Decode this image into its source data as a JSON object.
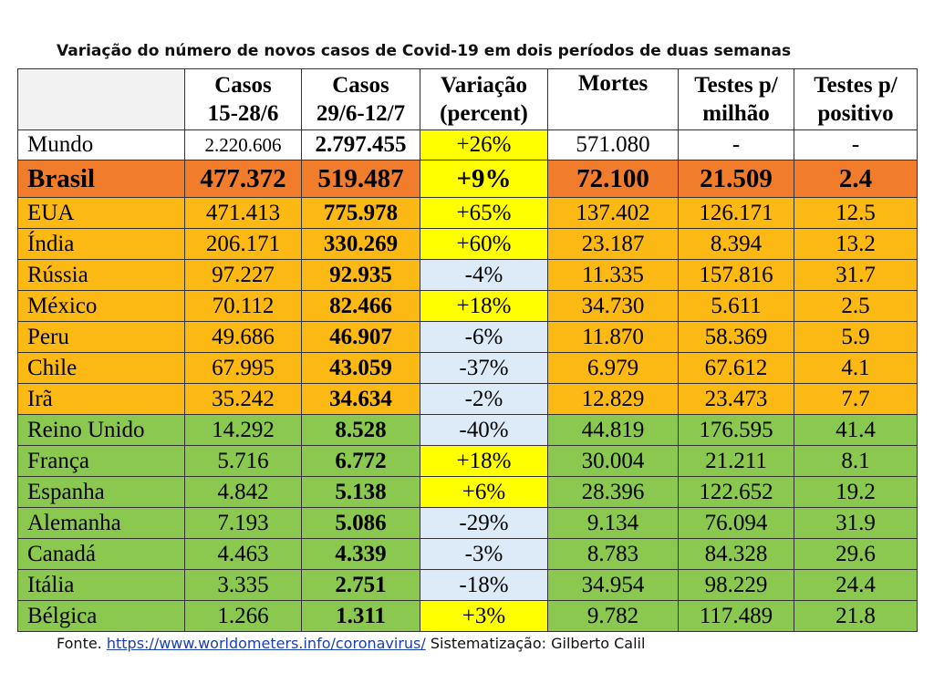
{
  "title": "Variação do número de novos casos de Covid-19 em dois períodos de duas semanas",
  "headers": {
    "country": "",
    "cases1_l1": "Casos",
    "cases1_l2": "15-28/6",
    "cases2_l1": "Casos",
    "cases2_l2": "29/6-12/7",
    "var_l1": "Variação",
    "var_l2": "(percent)",
    "deaths": "Mortes",
    "tests_l1": "Testes p/",
    "tests_l2": "milhão",
    "pos_l1": "Testes p/",
    "pos_l2": "positivo"
  },
  "rows": [
    {
      "country": "Mundo",
      "c1": "2.220.606",
      "c2": "2.797.455",
      "var": "+26%",
      "deaths": "571.080",
      "tests": "-",
      "pos": "-",
      "group": "world",
      "var_color": "yellow"
    },
    {
      "country": "Brasil",
      "c1": "477.372",
      "c2": "519.487",
      "var": "+9%",
      "deaths": "72.100",
      "tests": "21.509",
      "pos": "2.4",
      "group": "brasil",
      "var_color": "yellow"
    },
    {
      "country": "EUA",
      "c1": "471.413",
      "c2": "775.978",
      "var": "+65%",
      "deaths": "137.402",
      "tests": "126.171",
      "pos": "12.5",
      "group": "orange",
      "var_color": "yellow"
    },
    {
      "country": "Índia",
      "c1": "206.171",
      "c2": "330.269",
      "var": "+60%",
      "deaths": "23.187",
      "tests": "8.394",
      "pos": "13.2",
      "group": "orange",
      "var_color": "yellow"
    },
    {
      "country": "Rússia",
      "c1": "97.227",
      "c2": "92.935",
      "var": "-4%",
      "deaths": "11.335",
      "tests": "157.816",
      "pos": "31.7",
      "group": "orange",
      "var_color": "blue"
    },
    {
      "country": "México",
      "c1": "70.112",
      "c2": "82.466",
      "var": "+18%",
      "deaths": "34.730",
      "tests": "5.611",
      "pos": "2.5",
      "group": "orange",
      "var_color": "yellow"
    },
    {
      "country": "Peru",
      "c1": "49.686",
      "c2": "46.907",
      "var": "-6%",
      "deaths": "11.870",
      "tests": "58.369",
      "pos": "5.9",
      "group": "orange",
      "var_color": "blue"
    },
    {
      "country": "Chile",
      "c1": "67.995",
      "c2": "43.059",
      "var": "-37%",
      "deaths": "6.979",
      "tests": "67.612",
      "pos": "4.1",
      "group": "orange",
      "var_color": "blue"
    },
    {
      "country": "Irã",
      "c1": "35.242",
      "c2": "34.634",
      "var": "-2%",
      "deaths": "12.829",
      "tests": "23.473",
      "pos": "7.7",
      "group": "orange",
      "var_color": "blue"
    },
    {
      "country": "Reino Unido",
      "c1": "14.292",
      "c2": "8.528",
      "var": "-40%",
      "deaths": "44.819",
      "tests": "176.595",
      "pos": "41.4",
      "group": "green",
      "var_color": "blue"
    },
    {
      "country": "França",
      "c1": "5.716",
      "c2": "6.772",
      "var": "+18%",
      "deaths": "30.004",
      "tests": "21.211",
      "pos": "8.1",
      "group": "green",
      "var_color": "yellow"
    },
    {
      "country": "Espanha",
      "c1": "4.842",
      "c2": "5.138",
      "var": "+6%",
      "deaths": "28.396",
      "tests": "122.652",
      "pos": "19.2",
      "group": "green",
      "var_color": "yellow"
    },
    {
      "country": "Alemanha",
      "c1": "7.193",
      "c2": "5.086",
      "var": "-29%",
      "deaths": "9.134",
      "tests": "76.094",
      "pos": "31.9",
      "group": "green",
      "var_color": "blue"
    },
    {
      "country": "Canadá",
      "c1": "4.463",
      "c2": "4.339",
      "var": "-3%",
      "deaths": "8.783",
      "tests": "84.328",
      "pos": "29.6",
      "group": "green",
      "var_color": "blue"
    },
    {
      "country": "Itália",
      "c1": "3.335",
      "c2": "2.751",
      "var": "-18%",
      "deaths": "34.954",
      "tests": "98.229",
      "pos": "24.4",
      "group": "green",
      "var_color": "blue"
    },
    {
      "country": "Bélgica",
      "c1": "1.266",
      "c2": "1.311",
      "var": "+3%",
      "deaths": "9.782",
      "tests": "117.489",
      "pos": "21.8",
      "group": "green",
      "var_color": "yellow"
    }
  ],
  "colors": {
    "brasil": "#f07c2c",
    "orange": "#fcb913",
    "green": "#8ac84f",
    "yellow": "#ffff00",
    "blue": "#dcebf7",
    "world": "#ffffff"
  },
  "source": {
    "prefix": "Fonte.",
    "link": "https://www.worldometers.info/coronavirus/",
    "suffix": "Sistematização: Gilberto Calil"
  }
}
